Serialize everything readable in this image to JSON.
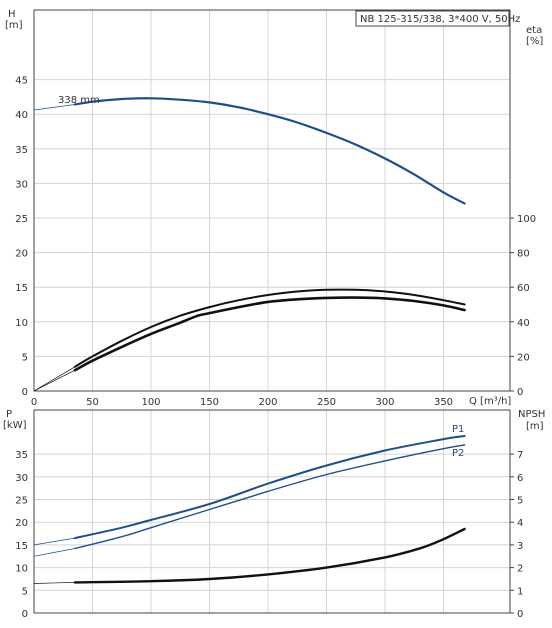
{
  "colors": {
    "curve_blue": "#1f4e8c",
    "curve_black": "#111111",
    "grid": "#d4d4d4",
    "axis": "#444444"
  },
  "chart_data": [
    {
      "type": "line",
      "panel": "top",
      "title": "NB 125-315/338, 3*400 V, 50Hz",
      "xlabel": "Q [m³/h]",
      "ylabel_left": [
        "H",
        "[m]"
      ],
      "ylabel_right": [
        "eta",
        "[%]"
      ],
      "xlim": [
        0,
        380
      ],
      "ylim_left": [
        0,
        50
      ],
      "ylim_right": [
        0,
        100
      ],
      "x_ticks": [
        "0",
        "50",
        "100",
        "150",
        "200",
        "250",
        "300",
        "350"
      ],
      "y_ticks_left": [
        "0",
        "5",
        "10",
        "15",
        "20",
        "25",
        "30",
        "35",
        "40",
        "45"
      ],
      "y_ticks_right": [
        "0",
        "20",
        "40",
        "60",
        "80",
        "100"
      ],
      "grid": true,
      "annotations": [
        "338 mm"
      ],
      "series": [
        {
          "name": "338 mm",
          "axis": "left",
          "color_key": "curve_blue",
          "x": [
            35,
            50,
            75,
            100,
            125,
            150,
            175,
            200,
            225,
            250,
            275,
            300,
            325,
            350,
            368
          ],
          "y": [
            41.4,
            41.8,
            42.2,
            42.3,
            42.1,
            41.7,
            41.0,
            40.0,
            38.8,
            37.3,
            35.6,
            33.6,
            31.3,
            28.7,
            27.1
          ],
          "extension": {
            "x": [
              0,
              35
            ],
            "y": [
              40.6,
              41.4
            ]
          }
        },
        {
          "axis": "right",
          "color_key": "curve_black",
          "x": [
            35,
            50,
            75,
            100,
            125,
            150,
            175,
            200,
            225,
            250,
            275,
            300,
            325,
            350,
            368
          ],
          "y": [
            14.0,
            20.0,
            29.0,
            37.0,
            43.5,
            48.5,
            52.5,
            55.5,
            57.5,
            58.5,
            58.5,
            57.5,
            55.5,
            52.5,
            50.0
          ],
          "extension": {
            "x": [
              0,
              35
            ],
            "y": [
              0,
              14.0
            ]
          }
        },
        {
          "axis": "right",
          "color_key": "curve_black",
          "x": [
            35,
            50,
            75,
            100,
            125,
            140,
            150,
            175,
            200,
            225,
            250,
            275,
            300,
            325,
            350,
            368
          ],
          "y": [
            12.0,
            17.5,
            25.5,
            33.0,
            39.5,
            43.5,
            45.0,
            48.5,
            51.5,
            53.0,
            53.8,
            54.0,
            53.5,
            52.0,
            49.5,
            46.8
          ],
          "extension": {
            "x": [
              0,
              35
            ],
            "y": [
              0,
              12.0
            ]
          }
        }
      ]
    },
    {
      "type": "line",
      "panel": "bottom",
      "xlim": [
        0,
        380
      ],
      "ylim_left": [
        0,
        45
      ],
      "ylim_right": [
        0,
        9
      ],
      "ylabel_left": [
        "P",
        "[kW]"
      ],
      "ylabel_right": [
        "NPSH",
        "[m]"
      ],
      "y_ticks_left": [
        "0",
        "5",
        "10",
        "15",
        "20",
        "25",
        "30",
        "35"
      ],
      "y_ticks_right": [
        "0",
        "1",
        "2",
        "3",
        "4",
        "5",
        "6",
        "7"
      ],
      "grid": true,
      "series": [
        {
          "name": "P1",
          "axis": "left",
          "color_key": "curve_blue",
          "x": [
            35,
            75,
            100,
            150,
            200,
            250,
            300,
            350,
            368
          ],
          "y": [
            16.5,
            18.8,
            20.5,
            24.0,
            28.5,
            32.5,
            35.8,
            38.3,
            39.0
          ],
          "extension": {
            "x": [
              0,
              35
            ],
            "y": [
              15.0,
              16.5
            ]
          }
        },
        {
          "name": "P2",
          "axis": "left",
          "color_key": "curve_blue",
          "x": [
            35,
            75,
            100,
            150,
            200,
            250,
            300,
            350,
            368
          ],
          "y": [
            14.2,
            16.8,
            18.8,
            22.8,
            26.8,
            30.5,
            33.5,
            36.2,
            37.0
          ],
          "extension": {
            "x": [
              0,
              35
            ],
            "y": [
              12.5,
              14.2
            ]
          }
        },
        {
          "name": "NPSH",
          "axis": "right",
          "color_key": "curve_black",
          "x": [
            35,
            100,
            150,
            200,
            250,
            300,
            330,
            350,
            368
          ],
          "y": [
            1.35,
            1.4,
            1.5,
            1.7,
            2.0,
            2.45,
            2.85,
            3.25,
            3.7
          ],
          "extension": {
            "x": [
              0,
              35
            ],
            "y": [
              1.3,
              1.35
            ]
          }
        }
      ]
    }
  ]
}
